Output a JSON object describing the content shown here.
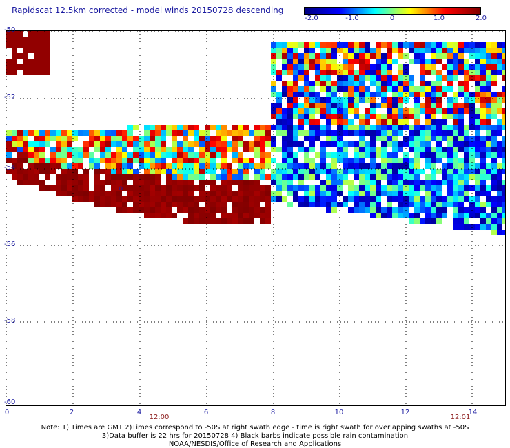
{
  "title": "Rapidscat 12.5km corrected - model winds 20150728 descending",
  "colorbar": {
    "labels": [
      "-2.0",
      "-1.0",
      "0",
      "1.0",
      "2.0"
    ],
    "min": -2.0,
    "max": 2.0,
    "colors": [
      "#00007f",
      "#0000ff",
      "#00ffff",
      "#ffff00",
      "#ff0000",
      "#7f0000"
    ]
  },
  "map": {
    "x_ticks": [
      "0",
      "2",
      "4",
      "6",
      "8",
      "10",
      "12",
      "14"
    ],
    "y_ticks": [
      "-50",
      "-52",
      "-54",
      "-56",
      "-58",
      "-60"
    ],
    "time_labels": [
      "12:00",
      "12:01"
    ],
    "grid": "dotted",
    "marker": "o"
  },
  "notes": [
    "Note: 1) Times are GMT 2)Times correspond to -50S at right swath edge - time is right swath for overlapping swaths at -50S",
    "3)Data buffer is 22 hrs for 20150728 4) Black barbs indicate possible rain contamination",
    "NOAA/NESDIS/Office of Research and Applications"
  ]
}
